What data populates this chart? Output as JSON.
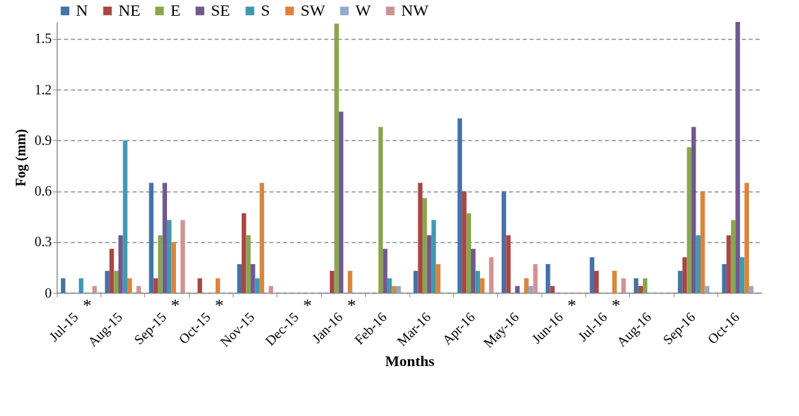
{
  "chart_data": {
    "type": "bar",
    "xlabel": "Months",
    "ylabel": "Fog (mm)",
    "categories": [
      "Jul-15",
      "Aug-15",
      "Sep-15",
      "Oct-15",
      "Nov-15",
      "Dec-15",
      "Jan-16",
      "Feb-16",
      "Mar-16",
      "Apr-16",
      "May-16",
      "Jun-16",
      "Jul-16",
      "Aug-16",
      "Sep-16",
      "Oct-16"
    ],
    "series": [
      {
        "name": "N",
        "color": "#4572a7",
        "values": [
          0.086,
          0.13,
          0.65,
          0,
          0.17,
          0,
          0,
          0,
          0.13,
          1.03,
          0.6,
          0.17,
          0.21,
          0.086,
          0.13,
          0.17
        ]
      },
      {
        "name": "NE",
        "color": "#aa4643",
        "values": [
          0,
          0.26,
          0.086,
          0.086,
          0.47,
          0,
          0.13,
          0,
          0.65,
          0.6,
          0.34,
          0.04,
          0.13,
          0.04,
          0.21,
          0.34
        ]
      },
      {
        "name": "E",
        "color": "#89a54e",
        "values": [
          0,
          0.13,
          0.34,
          0,
          0.34,
          0,
          1.59,
          0.98,
          0.56,
          0.47,
          0,
          0,
          0,
          0.086,
          0.86,
          0.43
        ]
      },
      {
        "name": "SE",
        "color": "#71588f",
        "values": [
          0,
          0.34,
          0.65,
          0,
          0.17,
          0,
          1.07,
          0.26,
          0.34,
          0.26,
          0.04,
          0,
          0,
          0,
          0.98,
          1.6
        ]
      },
      {
        "name": "S",
        "color": "#4198af",
        "values": [
          0.086,
          0.9,
          0.43,
          0,
          0.086,
          0,
          0,
          0.086,
          0.43,
          0.13,
          0,
          0,
          0,
          0,
          0.34,
          0.21
        ]
      },
      {
        "name": "SW",
        "color": "#db843d",
        "values": [
          0,
          0.086,
          0.3,
          0.086,
          0.65,
          0,
          0.13,
          0.04,
          0.17,
          0.086,
          0.086,
          0,
          0.13,
          0,
          0.6,
          0.65
        ]
      },
      {
        "name": "W",
        "color": "#93a9cf",
        "values": [
          0,
          0,
          0,
          0,
          0,
          0,
          0,
          0.04,
          0,
          0,
          0.04,
          0,
          0,
          0,
          0.04,
          0.04
        ]
      },
      {
        "name": "NW",
        "color": "#d19392",
        "values": [
          0.04,
          0.04,
          0.43,
          0,
          0.04,
          0,
          0,
          0,
          0,
          0.21,
          0.17,
          0,
          0.086,
          0,
          0,
          0
        ]
      }
    ],
    "ylim": [
      0,
      1.6
    ],
    "yticks": [
      {
        "value": 0,
        "label": "0"
      },
      0.3,
      0.6,
      0.9,
      1.2,
      1.5
    ],
    "grid": "y",
    "legend": "top",
    "annotations": [
      {
        "text": "*",
        "x": "Jul-15",
        "y": 0
      },
      {
        "text": "*",
        "x": "Sep-15",
        "y": 0
      },
      {
        "text": "*",
        "x": "Oct-15",
        "y": 0
      },
      {
        "text": "*",
        "x": "Dec-15",
        "y": 0
      },
      {
        "text": "*",
        "x": "Jan-16",
        "y": 0
      },
      {
        "text": "*",
        "x": "Jun-16",
        "y": 0
      },
      {
        "text": "*",
        "x": "Jul-16",
        "y": 0
      }
    ]
  }
}
